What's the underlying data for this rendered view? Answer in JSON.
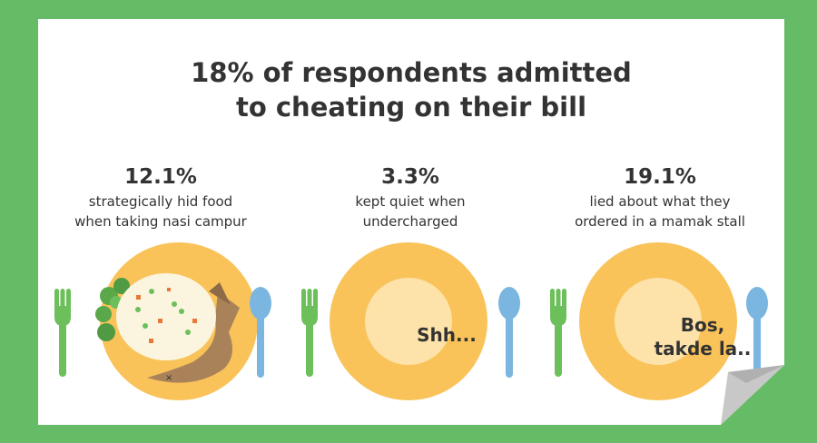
{
  "title": {
    "line1": "18% of respondents admitted",
    "line2": "to cheating on their bill"
  },
  "stats": [
    {
      "percent": "12.1%",
      "line1": "strategically hid food",
      "line2": "when taking nasi campur"
    },
    {
      "percent": "3.3%",
      "line1": "kept quiet when",
      "line2": "undercharged"
    },
    {
      "percent": "19.1%",
      "line1": "lied about what they",
      "line2": "ordered in a mamak stall"
    }
  ],
  "plates": {
    "plate2_text": "Shh...",
    "plate3_line1": "Bos,",
    "plate3_line2": "takde la.."
  },
  "colors": {
    "background": "#66bb66",
    "card": "#ffffff",
    "plate": "#f9c35a",
    "plate_center": "#fde2a9",
    "fork": "#6cbf5a",
    "spoon": "#7ab6df",
    "text": "#333333"
  }
}
